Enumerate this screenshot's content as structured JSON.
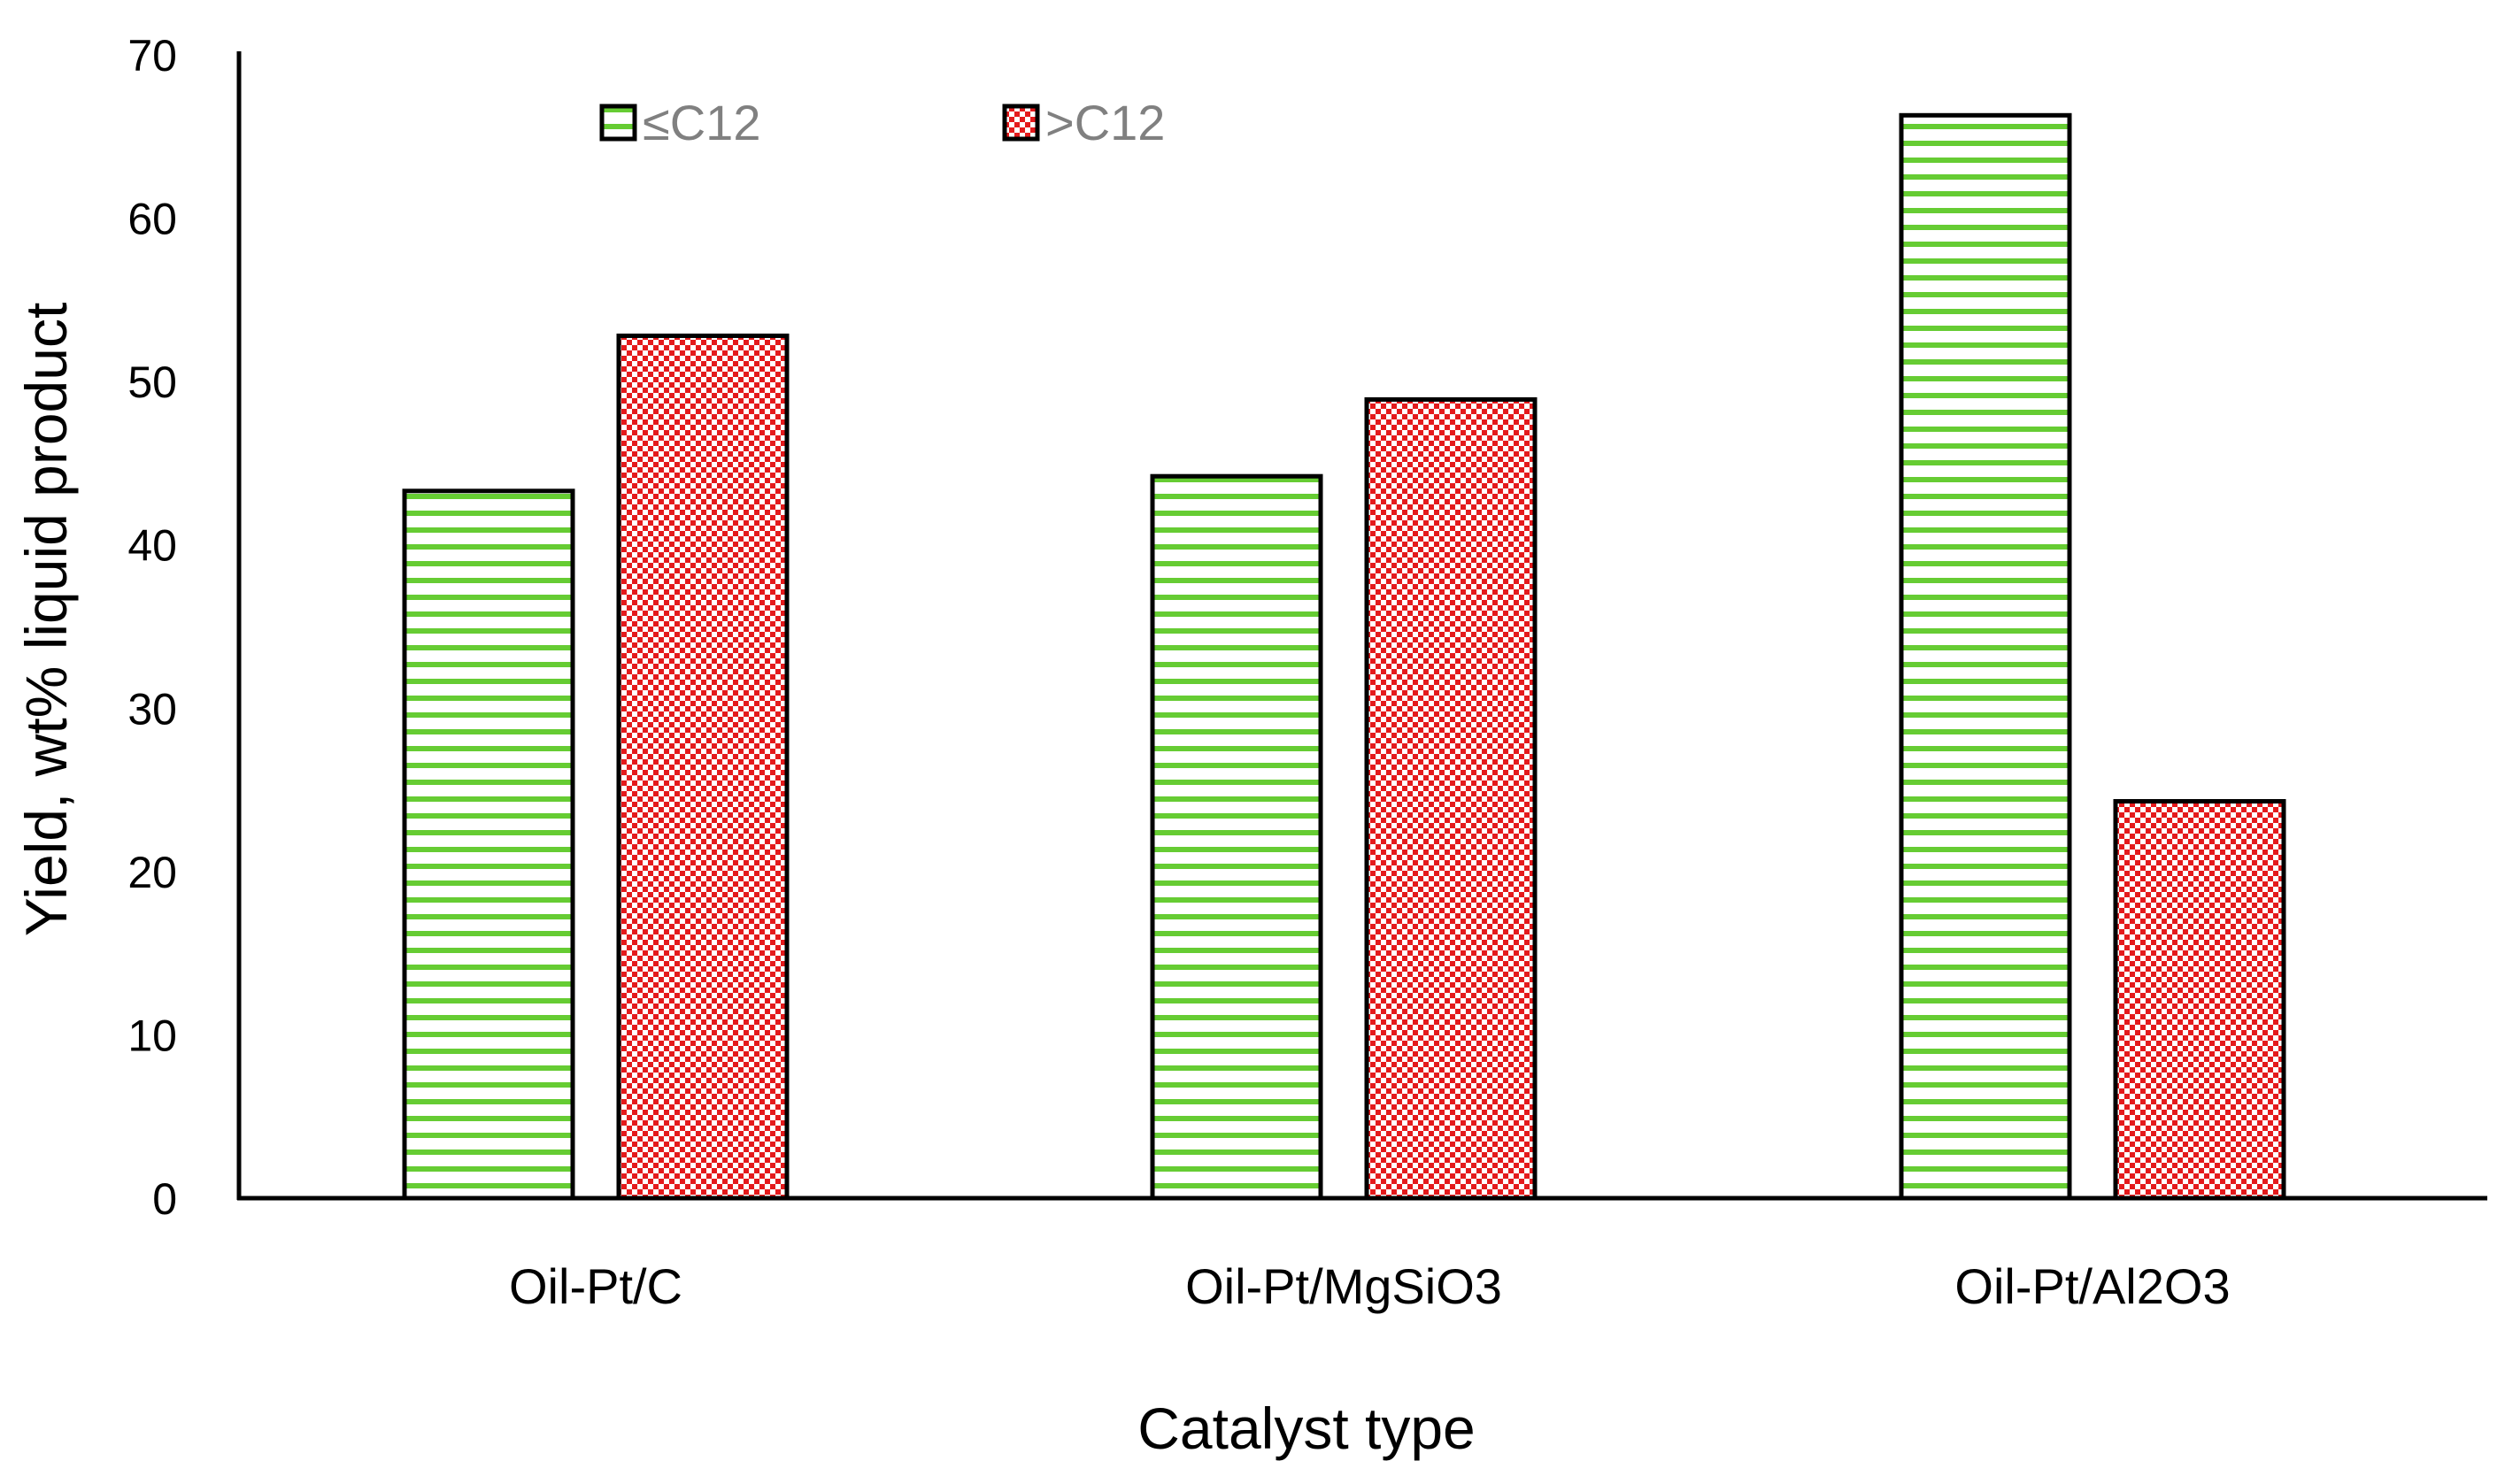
{
  "chart_data": {
    "type": "bar",
    "title": "",
    "xlabel": "Catalyst type",
    "ylabel": "Yield, wt% liquid product",
    "ylim": [
      0,
      70
    ],
    "yticks": [
      0,
      10,
      20,
      30,
      40,
      50,
      60,
      70
    ],
    "grid": false,
    "legend_position": "top-left",
    "categories": [
      "Oil-Pt/C",
      "Oil-Pt/MgSiO3",
      "Oil-Pt/Al2O3"
    ],
    "series": [
      {
        "name": "≤C12",
        "values": [
          43.3,
          44.2,
          66.3
        ],
        "color": "#66cc33",
        "pattern": "horizontal-stripes"
      },
      {
        "name": ">C12",
        "values": [
          52.8,
          48.9,
          24.3
        ],
        "color": "#e41a1c",
        "pattern": "checker"
      }
    ]
  }
}
